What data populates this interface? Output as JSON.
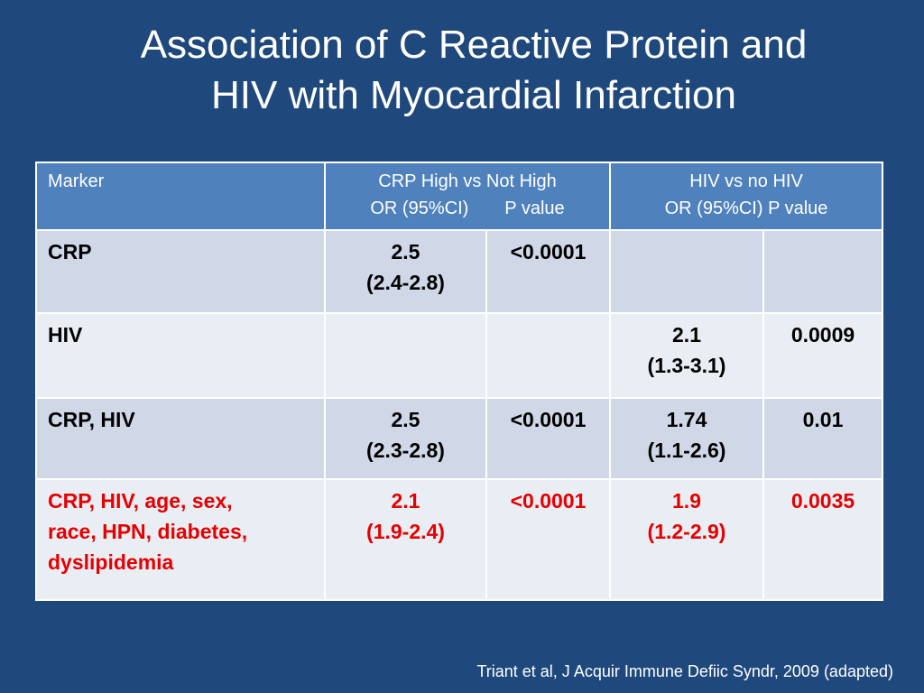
{
  "slide": {
    "title_line1": "Association of C Reactive Protein and",
    "title_line2": "HIV with Myocardial Infarction",
    "citation": "Triant et al, J Acquir Immune Defiic Syndr, 2009  (adapted)"
  },
  "table": {
    "header": {
      "marker": "Marker",
      "crp_title": "CRP  High vs Not High",
      "crp_or": "OR (95%CI)",
      "crp_p": "P value",
      "hiv_title": "HIV vs no HIV",
      "hiv_sub": "OR (95%CI)  P value"
    },
    "rows": [
      {
        "marker": "CRP",
        "crp_or": "2.5",
        "crp_ci": "(2.4-2.8)",
        "crp_p": "<0.0001",
        "hiv_or": "",
        "hiv_ci": "",
        "hiv_p": ""
      },
      {
        "marker": "HIV",
        "crp_or": "",
        "crp_ci": "",
        "crp_p": "",
        "hiv_or": "2.1",
        "hiv_ci": "(1.3-3.1)",
        "hiv_p": "0.0009"
      },
      {
        "marker": "CRP, HIV",
        "crp_or": "2.5",
        "crp_ci": "(2.3-2.8)",
        "crp_p": "<0.0001",
        "hiv_or": "1.74",
        "hiv_ci": "(1.1-2.6)",
        "hiv_p": "0.01"
      },
      {
        "marker_line1": "CRP, HIV, age, sex,",
        "marker_line2": "race, HPN, diabetes,",
        "marker_line3": "dyslipidemia",
        "crp_or": "2.1",
        "crp_ci": "(1.9-2.4)",
        "crp_p": "<0.0001",
        "hiv_or": "1.9",
        "hiv_ci": "(1.2-2.9)",
        "hiv_p": "0.0035"
      }
    ]
  },
  "colors": {
    "background": "#1f497d",
    "header": "#4f81bd",
    "row_dark": "#d0d8e8",
    "row_light": "#e9edf4",
    "highlight_text": "#e60000"
  }
}
